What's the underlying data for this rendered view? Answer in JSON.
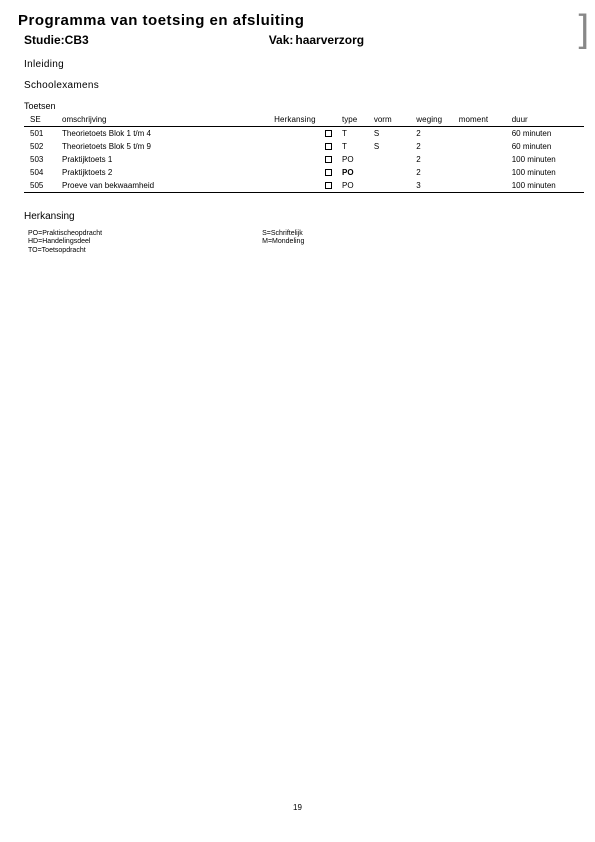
{
  "title": "Programma van toetsing en afsluiting",
  "studie_label": "Studie:",
  "studie_value": "CB3",
  "vak_label": "Vak:",
  "vak_value": "haarverzorg",
  "inleiding": "Inleiding",
  "schoolexamens": "Schoolexamens",
  "toetsen": "Toetsen",
  "herkansing": "Herkansing",
  "columns": {
    "se": "SE",
    "omschrijving": "omschrijving",
    "herkansing": "Herkansing",
    "type": "type",
    "vorm": "vorm",
    "weging": "weging",
    "moment": "moment",
    "duur": "duur"
  },
  "rows": [
    {
      "se": "501",
      "oms": "Theorietoets Blok 1 t/m 4",
      "type": "T",
      "vorm": "S",
      "weging": "2",
      "moment": "",
      "duur": "60 minuten"
    },
    {
      "se": "502",
      "oms": "Theorietoets Blok 5 t/m 9",
      "type": "T",
      "vorm": "S",
      "weging": "2",
      "moment": "",
      "duur": "60 minuten"
    },
    {
      "se": "503",
      "oms": "Praktijktoets 1",
      "type": "PO",
      "vorm": "",
      "weging": "2",
      "moment": "",
      "duur": "100 minuten"
    },
    {
      "se": "504",
      "oms": "Praktijktoets 2",
      "type": "PO",
      "type_bold": true,
      "vorm": "",
      "weging": "2",
      "moment": "",
      "duur": "100 minuten"
    },
    {
      "se": "505",
      "oms": "Proeve van bekwaamheid",
      "type": "PO",
      "vorm": "",
      "weging": "3",
      "moment": "",
      "duur": "100 minuten"
    }
  ],
  "legend_left": [
    "PO=Praktischeopdracht",
    "HD=Handelingsdeel",
    "TO=Toetsopdracht"
  ],
  "legend_right": [
    "S=Schriftelijk",
    "M=Mondeling"
  ],
  "page_number": "19",
  "bracket": "]"
}
